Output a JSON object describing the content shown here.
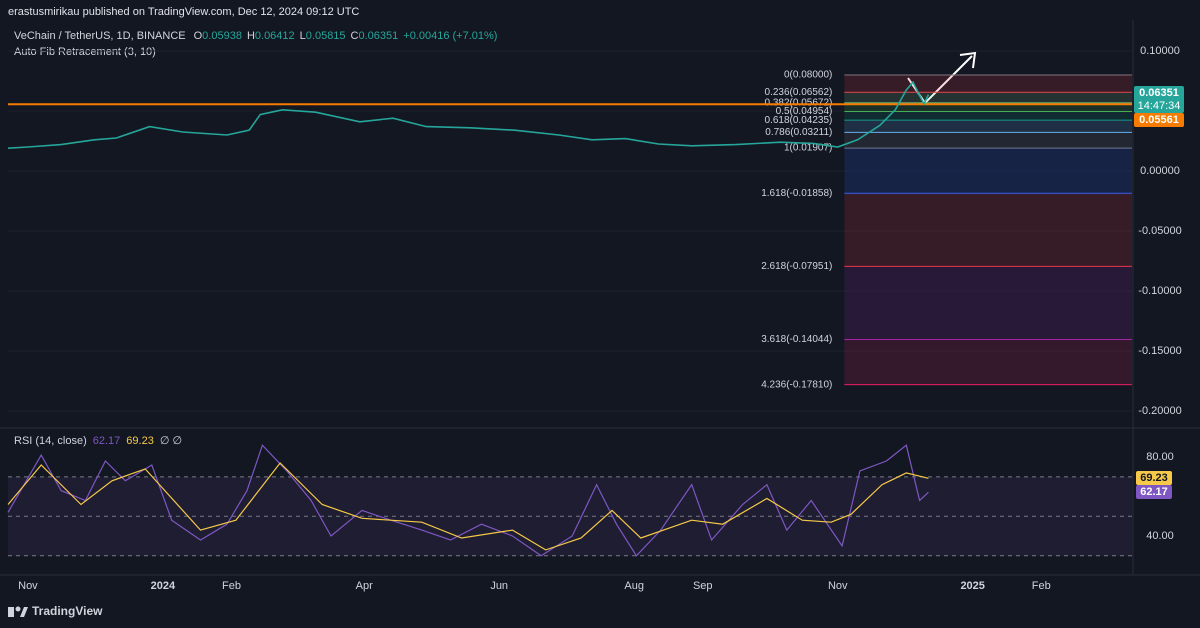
{
  "header": {
    "publisher": "erastusmirikau published on TradingView.com, Dec 12, 2024 09:12 UTC",
    "symbol": "VeChain / TetherUS, 1D, BINANCE",
    "ohlc": [
      {
        "key": "O",
        "value": 0.05938
      },
      {
        "key": "H",
        "value": 0.06412
      },
      {
        "key": "L",
        "value": 0.05815
      },
      {
        "key": "C",
        "value": 0.06351
      }
    ],
    "change": "+0.00416 (+7.01%)",
    "indicator": "Auto Fib Retracement (3, 10)"
  },
  "footer": {
    "brand": "TradingView"
  },
  "chart_data": [
    {
      "type": "line",
      "xlim": [
        -9,
        499
      ],
      "ylim": [
        -0.2117,
        0.1258
      ],
      "yticks": [
        {
          "value": 0.1,
          "label": "0.10000"
        },
        {
          "value": 0.05,
          "label": "0.05000"
        },
        {
          "value": 0,
          "label": "0.00000"
        },
        {
          "value": -0.05,
          "label": "-0.05000"
        },
        {
          "value": -0.1,
          "label": "-0.10000"
        },
        {
          "value": -0.15,
          "label": "-0.15000"
        },
        {
          "value": -0.2,
          "label": "-0.20000"
        }
      ],
      "grid": true,
      "series": [
        {
          "color": "#26a69a",
          "x": [
            -9,
            0,
            15,
            30,
            40,
            55,
            70,
            90,
            100,
            105,
            115,
            130,
            150,
            165,
            180,
            200,
            220,
            240,
            255,
            270,
            285,
            300,
            320,
            340,
            355,
            366,
            375,
            385,
            392,
            397,
            400,
            403,
            405,
            407
          ],
          "values": [
            0.019,
            0.02,
            0.022,
            0.026,
            0.0275,
            0.037,
            0.0325,
            0.03,
            0.034,
            0.047,
            0.051,
            0.049,
            0.041,
            0.044,
            0.037,
            0.036,
            0.034,
            0.03,
            0.026,
            0.027,
            0.0225,
            0.021,
            0.022,
            0.024,
            0.023,
            0.02,
            0.026,
            0.038,
            0.051,
            0.0675,
            0.074,
            0.063,
            0.0558,
            0.06351
          ]
        }
      ],
      "countdown": "14:47:34",
      "hline": {
        "value": 0.05561,
        "color": "#f57c00"
      },
      "fib_x": [
        369,
        499
      ],
      "fib_levels": [
        {
          "value": 0.08,
          "label": "0(0.08000)",
          "color": "#787b86"
        },
        {
          "value": 0.06562,
          "label": "0.236(0.06562)",
          "color": "#f23645"
        },
        {
          "value": 0.05672,
          "label": "0.382(0.05672)",
          "color": "#81c784"
        },
        {
          "value": 0.04954,
          "label": "0.5(0.04954)",
          "color": "#4caf50"
        },
        {
          "value": 0.04235,
          "label": "0.618(0.04235)",
          "color": "#089981"
        },
        {
          "value": 0.03211,
          "label": "0.786(0.03211)",
          "color": "#64b5f6"
        },
        {
          "value": 0.01907,
          "label": "1(0.01907)",
          "color": "#787b86"
        },
        {
          "value": -0.01858,
          "label": "1.618(-0.01858)",
          "color": "#2962ff"
        },
        {
          "value": -0.07951,
          "label": "2.618(-0.07951)",
          "color": "#f23645"
        },
        {
          "value": -0.14044,
          "label": "3.618(-0.14044)",
          "color": "#9c27b0"
        },
        {
          "value": -0.1781,
          "label": "4.236(-0.17810)",
          "color": "#e91e63"
        }
      ]
    },
    {
      "type": "line",
      "title": "RSI (14, close)",
      "nulls": "∅ ∅",
      "xlim": [
        -9,
        499
      ],
      "ylim": [
        22.8,
        92.7
      ],
      "yticks": [
        {
          "value": 80,
          "label": "80.00"
        },
        {
          "value": 40,
          "label": "40.00"
        }
      ],
      "bands": [
        30,
        50,
        70
      ],
      "xticks": [
        {
          "value": 0,
          "label": "Nov"
        },
        {
          "value": 61,
          "label": "2024"
        },
        {
          "value": 92,
          "label": "Feb"
        },
        {
          "value": 152,
          "label": "Apr"
        },
        {
          "value": 213,
          "label": "Jun"
        },
        {
          "value": 274,
          "label": "Aug"
        },
        {
          "value": 305,
          "label": "Sep"
        },
        {
          "value": 366,
          "label": "Nov"
        },
        {
          "value": 427,
          "label": "2025"
        },
        {
          "value": 458,
          "label": "Feb"
        }
      ],
      "series": [
        {
          "color": "#7e57c2",
          "x": [
            -9,
            6,
            15,
            26,
            35,
            44,
            56,
            65,
            78,
            90,
            99,
            106,
            117,
            128,
            137,
            151,
            164,
            178,
            191,
            205,
            219,
            232,
            246,
            257,
            266,
            275,
            286,
            300,
            309,
            323,
            334,
            343,
            354,
            368,
            376,
            388,
            397,
            403,
            407
          ],
          "values": [
            52,
            81,
            63,
            58,
            78,
            68,
            76,
            48,
            38,
            46,
            63,
            86,
            73,
            58,
            40,
            53,
            48,
            43,
            38,
            46,
            40,
            30,
            40,
            66,
            46,
            30,
            43,
            66,
            38,
            56,
            66,
            43,
            58,
            35,
            73,
            78,
            86,
            58,
            62.17
          ]
        },
        {
          "color": "#f7c948",
          "x": [
            -9,
            6,
            24,
            38,
            53,
            78,
            94,
            114,
            133,
            151,
            178,
            196,
            219,
            234,
            250,
            264,
            277,
            300,
            314,
            334,
            350,
            363,
            372,
            386,
            397,
            407
          ],
          "values": [
            56,
            76,
            56,
            68,
            74,
            43,
            48,
            77,
            56,
            49,
            47,
            39,
            43,
            33,
            39,
            53,
            39,
            48,
            46,
            59,
            48,
            47,
            51,
            66,
            72,
            69.23
          ]
        }
      ]
    }
  ]
}
